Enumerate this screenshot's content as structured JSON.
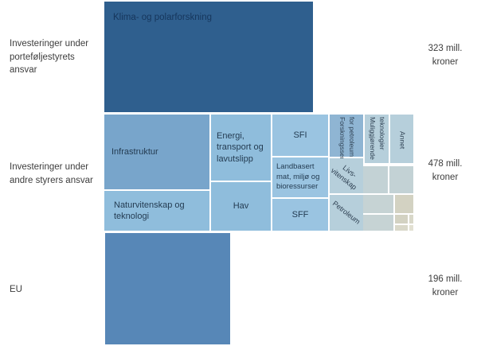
{
  "rows": [
    {
      "label": "Investeringer under porteføljestyrets ansvar",
      "value": "323 mill. kroner"
    },
    {
      "label": "Investeringer under andre styrers ansvar",
      "value": "478 mill. kroner"
    },
    {
      "label": "EU",
      "value": "196 mill. kroner"
    }
  ],
  "cells": {
    "klima": {
      "label": "Klima- og polarforskning"
    },
    "infrastruktur": {
      "label": "Infrastruktur"
    },
    "naturvitenskap": {
      "label": "Naturvitenskap og teknologi"
    },
    "energi": {
      "label": "Energi, transport og lavutslipp"
    },
    "hav": {
      "label": "Hav"
    },
    "sfi": {
      "label": "SFI"
    },
    "landbasert": {
      "label": "Landbasert mat, miljø og bioressurser"
    },
    "sff": {
      "label": "SFF"
    },
    "forskningssentre": {
      "label": "Forskningssentre for petroleum"
    },
    "livsvitenskap": {
      "label": "Livs-vitenskap"
    },
    "petroleum": {
      "label": "Petroleum"
    },
    "muliggjorende": {
      "label": "Muliggjørende teknologier"
    },
    "annet": {
      "label": "Annet"
    }
  },
  "chart_data": {
    "type": "treemap",
    "unit": "mill. kroner",
    "legend_position": "none",
    "grid": false,
    "groups": [
      {
        "name": "Investeringer under porteføljestyrets ansvar",
        "total": 323,
        "total_label": "323 mill. kroner",
        "cells": [
          "Klima- og polarforskning"
        ]
      },
      {
        "name": "Investeringer under andre styrers ansvar",
        "total": 478,
        "total_label": "478 mill. kroner",
        "cells": [
          "Infrastruktur",
          "Naturvitenskap og teknologi",
          "Energi, transport og lavutslipp",
          "Hav",
          "SFI",
          "Landbasert mat, miljø og bioressurser",
          "SFF",
          "Forskningssentre for petroleum",
          "Livs-vitenskap",
          "Petroleum",
          "Muliggjørende teknologier",
          "Annet"
        ],
        "note": "plus several small unlabeled cells at bottom right"
      },
      {
        "name": "EU",
        "total": 196,
        "total_label": "196 mill. kroner",
        "cells": []
      }
    ],
    "colors": {
      "dark_blue": "#2f5f8e",
      "medium_blue": "#78a5cb",
      "light_blue": "#8fbddc",
      "lighter_blue": "#9ac4e1",
      "muted_blue": "#8fb5d3",
      "pale_blue_gray": "#b6cfdb",
      "gray_blue": "#c3d2d5",
      "tan": "#d3d2c2",
      "eu_blue": "#5787b7"
    }
  }
}
